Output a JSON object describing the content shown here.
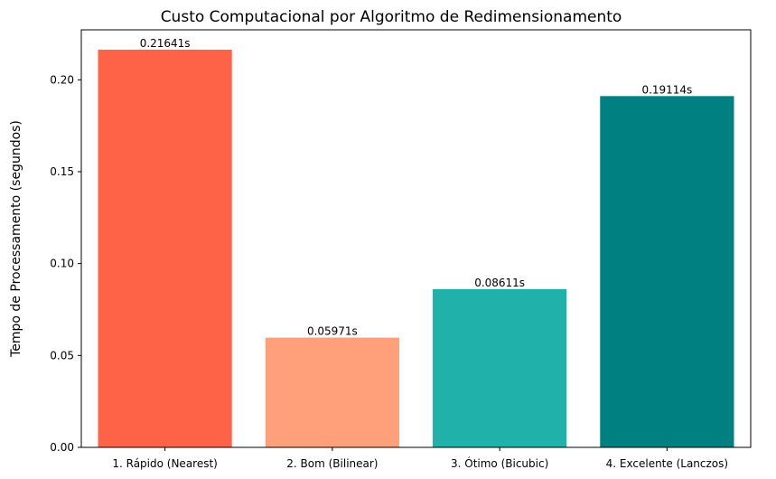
{
  "chart_data": {
    "type": "bar",
    "title": "Custo Computacional por Algoritmo de Redimensionamento",
    "xlabel": "",
    "ylabel": "Tempo de Processamento (segundos)",
    "categories": [
      "1. Rápido (Nearest)",
      "2. Bom (Bilinear)",
      "3. Ótimo (Bicubic)",
      "4. Excelente (Lanczos)"
    ],
    "values": [
      0.21641,
      0.05971,
      0.08611,
      0.19114
    ],
    "data_labels": [
      "0.21641s",
      "0.05971s",
      "0.08611s",
      "0.19114s"
    ],
    "colors": [
      "#ff6347",
      "#ffa07a",
      "#20b2aa",
      "#008080"
    ],
    "ylim": [
      0,
      0.2272
    ],
    "yticks": [
      0.0,
      0.05,
      0.1,
      0.15,
      0.2
    ],
    "ytick_labels": [
      "0.00",
      "0.05",
      "0.10",
      "0.15",
      "0.20"
    ],
    "grid": false,
    "legend": "none"
  }
}
